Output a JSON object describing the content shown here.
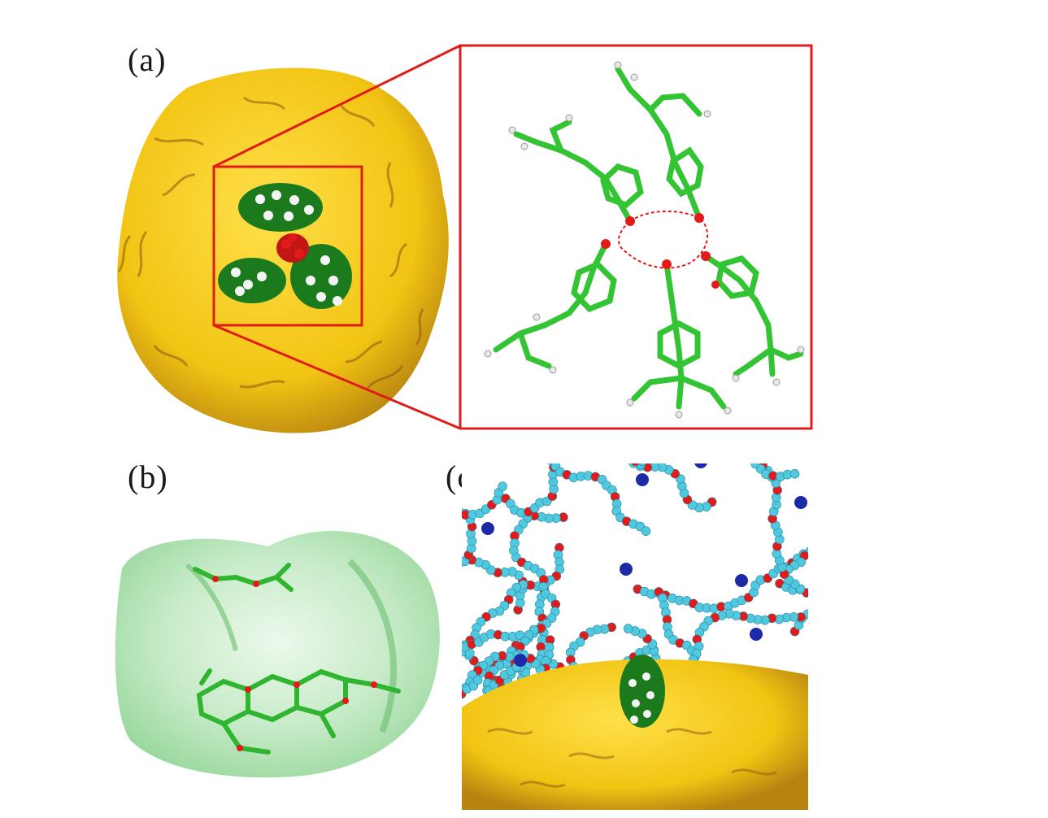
{
  "figure": {
    "panels": [
      {
        "id": "a",
        "label": "(a)",
        "content": "protein-surface-with-bound-ligand-and-zoom-inset"
      },
      {
        "id": "b",
        "label": "(b)",
        "content": "translucent-green-surface-with-stick-model"
      },
      {
        "id": "c",
        "label": "(c)",
        "content": "spacefill-chains-over-protein-surface"
      }
    ],
    "colors": {
      "protein_surface": "#f2c413",
      "protein_shadow": "#8a5a12",
      "highlight_box": "#e01b1b",
      "carbon": "#37c837",
      "oxygen": "#e31a1a",
      "hydrogen": "#f4f4f4",
      "polymer_carbon": "#4fc8e0",
      "ion": "#1c2aa8",
      "translucent_surface": "#9fdca0"
    }
  }
}
